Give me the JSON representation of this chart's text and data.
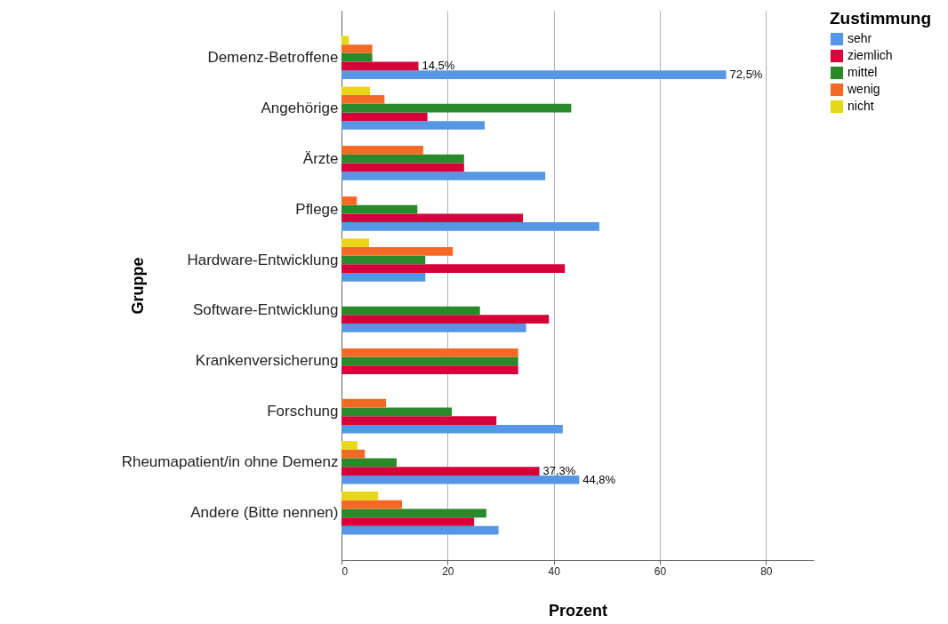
{
  "chart_data": {
    "type": "bar",
    "orientation": "horizontal",
    "xlabel": "Prozent",
    "ylabel": "Gruppe",
    "legend_title": "Zustimmung",
    "legend": "top right",
    "grid": "x",
    "categories": [
      "Demenz-Betroffene",
      "Angehörige",
      "Ärzte",
      "Pflege",
      "Hardware-Entwicklung",
      "Software-Entwicklung",
      "Krankenversicherung",
      "Forschung",
      "Rheumapatient/in ohne Demenz",
      "Andere (Bitte nennen)"
    ],
    "xlim": [
      0,
      89
    ],
    "xticks": [
      0,
      20,
      40,
      60,
      80
    ],
    "series": [
      {
        "name": "sehr",
        "color": "#5596e6",
        "values": [
          72.5,
          27.0,
          38.4,
          48.6,
          15.8,
          34.8,
          null,
          41.7,
          44.8,
          29.6
        ],
        "value_labels": [
          "72,5%",
          null,
          null,
          null,
          null,
          null,
          null,
          null,
          "44,8%",
          null
        ]
      },
      {
        "name": "ziemlich",
        "color": "#d6003a",
        "values": [
          14.5,
          16.2,
          23.1,
          34.2,
          42.1,
          39.1,
          33.3,
          29.2,
          37.3,
          25.0
        ],
        "value_labels": [
          "14,5%",
          null,
          null,
          null,
          null,
          null,
          null,
          null,
          "37,3%",
          null
        ]
      },
      {
        "name": "mittel",
        "color": "#2a8a2a",
        "values": [
          5.8,
          43.3,
          23.1,
          14.3,
          15.8,
          26.1,
          33.3,
          20.8,
          10.4,
          27.3
        ]
      },
      {
        "name": "wenig",
        "color": "#f46a25",
        "values": [
          5.8,
          8.1,
          15.4,
          2.9,
          21.0,
          null,
          33.3,
          8.4,
          4.4,
          11.4
        ]
      },
      {
        "name": "nicht",
        "color": "#e6d819",
        "values": [
          1.4,
          5.4,
          null,
          null,
          5.2,
          null,
          null,
          null,
          3.0,
          6.9
        ]
      }
    ]
  }
}
